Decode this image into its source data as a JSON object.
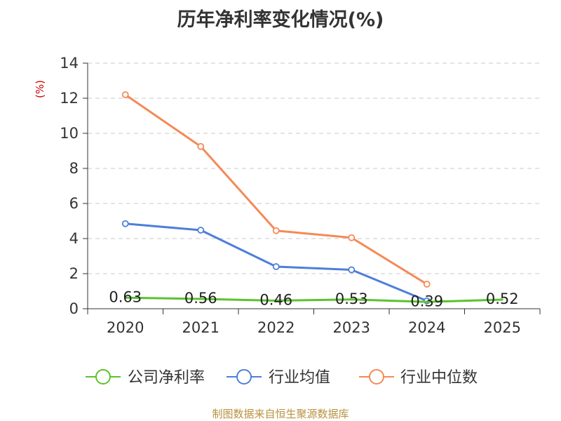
{
  "chart_data": {
    "type": "line",
    "title": "历年净利率变化情况(%)",
    "ylabel": "(%)",
    "xlabel": "",
    "ylim": [
      0,
      14
    ],
    "yticks": [
      0,
      2,
      4,
      6,
      8,
      10,
      12,
      14
    ],
    "categories": [
      "2020",
      "2021",
      "2022",
      "2023",
      "2024",
      "2025"
    ],
    "grid": true,
    "legend_position": "bottom",
    "series": [
      {
        "name": "公司净利率",
        "color": "#5cc22e",
        "values": [
          0.63,
          0.56,
          0.46,
          0.53,
          0.39,
          0.52
        ],
        "labels": [
          "0.63",
          "0.56",
          "0.46",
          "0.53",
          "0.39",
          "0.52"
        ],
        "markers": false
      },
      {
        "name": "行业均值",
        "color": "#4e7fd8",
        "values": [
          4.85,
          4.48,
          2.4,
          2.22,
          0.45,
          null
        ],
        "markers": true
      },
      {
        "name": "行业中位数",
        "color": "#f48a57",
        "values": [
          12.2,
          9.25,
          4.45,
          4.05,
          1.4,
          null
        ],
        "markers": true
      }
    ]
  },
  "footer": {
    "source": "制图数据来自恒生聚源数据库"
  },
  "colors": {
    "axis": "#333333",
    "grid": "#c8c8c8",
    "unit_label": "#cc0000",
    "source": "#b8923f"
  }
}
